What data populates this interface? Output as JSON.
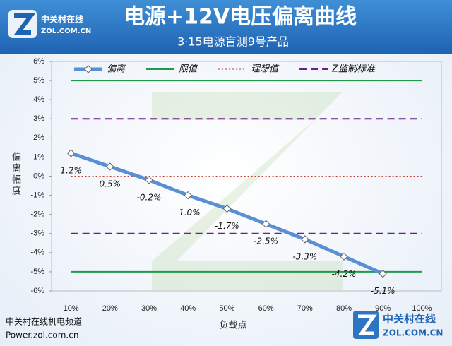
{
  "logo": {
    "name": "中关村在线",
    "domain": "ZOL.COM.CN"
  },
  "footer": {
    "channel": "中关村在线机电频道",
    "url": "Power.zol.com.cn"
  },
  "chart_data": {
    "type": "line",
    "title": "电源+12V电压偏离曲线",
    "subtitle": "3·15电源盲测9号产品",
    "x_label": "负载点",
    "y_label": "偏离幅度",
    "categories": [
      "10%",
      "20%",
      "30%",
      "40%",
      "50%",
      "60%",
      "70%",
      "80%",
      "90%",
      "100%"
    ],
    "series": [
      {
        "name": "偏离",
        "color": "#5b8fd4",
        "values": [
          1.2,
          0.5,
          -0.2,
          -1.0,
          -1.7,
          -2.5,
          -3.3,
          -4.2,
          -5.1,
          null
        ],
        "value_labels": [
          "1.2%",
          "0.5%",
          "-0.2%",
          "-1.0%",
          "-1.7%",
          "-2.5%",
          "-3.3%",
          "-4.2%",
          "-5.1%",
          null
        ]
      }
    ],
    "reference_lines": [
      {
        "name": "限值",
        "color": "#1e9a4a",
        "style": "solid",
        "values": [
          5,
          -5
        ]
      },
      {
        "name": "理想值",
        "color": "#c0392b",
        "style": "dotted",
        "values": [
          0
        ]
      },
      {
        "name": "Z监制标准",
        "color": "#6a1f8a",
        "style": "dashed",
        "values": [
          3,
          -3
        ]
      }
    ],
    "ylim": [
      -6,
      6
    ],
    "yticks": [
      {
        "value": -6,
        "label": "-6%"
      },
      {
        "value": -5,
        "label": "-5%"
      },
      {
        "value": -4,
        "label": "-4%"
      },
      {
        "value": -3,
        "label": "-3%"
      },
      {
        "value": -2,
        "label": "-2%"
      },
      {
        "value": -1,
        "label": "-1%"
      },
      {
        "value": 0,
        "label": "0%"
      },
      {
        "value": 1,
        "label": "1%"
      },
      {
        "value": 2,
        "label": "2%"
      },
      {
        "value": 3,
        "label": "3%"
      },
      {
        "value": 4,
        "label": "4%"
      },
      {
        "value": 5,
        "label": "5%"
      },
      {
        "value": 6,
        "label": "6%"
      }
    ],
    "legend": "top",
    "grid": false
  }
}
